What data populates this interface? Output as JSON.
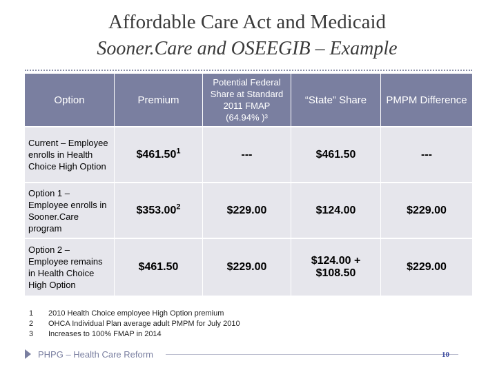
{
  "header": {
    "title_line1": "Affordable Care Act and Medicaid",
    "title_line2": "Sooner.Care and OSEEGIB – Example"
  },
  "table": {
    "columns": [
      "Option",
      "Premium",
      "Potential Federal Share at Standard 2011 FMAP (64.94% )³",
      "“State” Share",
      "PMPM Difference"
    ],
    "rows": [
      {
        "option": "Current – Employee enrolls in Health Choice High Option",
        "premium": "$461.50",
        "premium_sup": "1",
        "federal": "---",
        "state": "$461.50",
        "pmpm": "---"
      },
      {
        "option": "Option 1 – Employee enrolls in Sooner.Care program",
        "premium": "$353.00",
        "premium_sup": "2",
        "federal": "$229.00",
        "state": "$124.00",
        "pmpm": "$229.00"
      },
      {
        "option": "Option 2 – Employee remains in Health Choice High Option",
        "premium": "$461.50",
        "premium_sup": "",
        "federal": "$229.00",
        "state_line1": "$124.00 +",
        "state_line2": "$108.50",
        "pmpm": "$229.00"
      }
    ]
  },
  "footnotes": [
    {
      "num": "1",
      "text": "2010 Health Choice employee High Option premium"
    },
    {
      "num": "2",
      "text": "OHCA Individual Plan average adult PMPM for July 2010"
    },
    {
      "num": "3",
      "text": "Increases to 100% FMAP in 2014"
    }
  ],
  "footer": {
    "label": "PHPG – Health Care Reform",
    "page_number": "10"
  },
  "colors": {
    "header_bg": "#7a7fa0",
    "cell_bg": "#e6e6ec",
    "accent": "#3b4aa0"
  }
}
